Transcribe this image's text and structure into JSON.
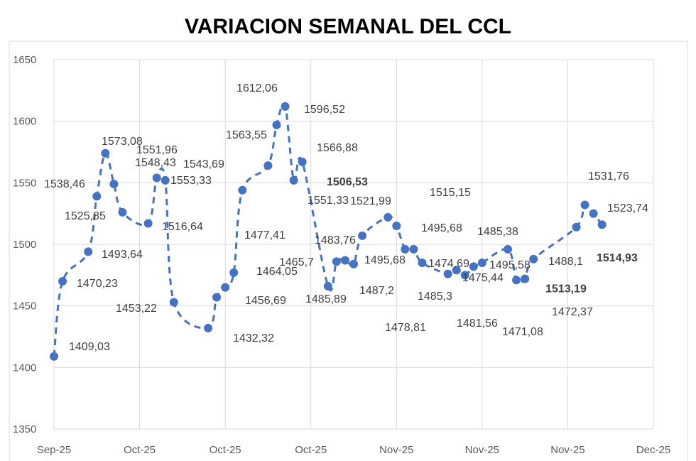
{
  "chart_data": {
    "type": "line",
    "title": "VARIACION SEMANAL DEL CCL",
    "xlabel": "",
    "ylabel": "",
    "ylim": [
      1350,
      1650
    ],
    "yticks": [
      "1350",
      "1400",
      "1450",
      "1500",
      "1550",
      "1600",
      "1650"
    ],
    "xticks": [
      "Sep-25",
      "Oct-25",
      "Oct-25",
      "Oct-25",
      "Nov-25",
      "Nov-25",
      "Nov-25",
      "Dec-25"
    ],
    "xtick_dates": [
      "2025-09-26",
      "2025-10-06",
      "2025-10-16",
      "2025-10-26",
      "2025-11-05",
      "2025-11-15",
      "2025-11-25",
      "2025-12-05"
    ],
    "grid": true,
    "legend": "none",
    "line_style": "dashed",
    "color": "#4472C4",
    "points": [
      {
        "x": "2025-09-26",
        "y": 1409
      },
      {
        "x": "2025-09-27",
        "y": 1470
      },
      {
        "x": "2025-09-30",
        "y": 1494
      },
      {
        "x": "2025-10-01",
        "y": 1539
      },
      {
        "x": "2025-10-02",
        "y": 1574
      },
      {
        "x": "2025-10-03",
        "y": 1549
      },
      {
        "x": "2025-10-04",
        "y": 1526
      },
      {
        "x": "2025-10-07",
        "y": 1517
      },
      {
        "x": "2025-10-08",
        "y": 1554
      },
      {
        "x": "2025-10-09",
        "y": 1552
      },
      {
        "x": "2025-10-10",
        "y": 1453
      },
      {
        "x": "2025-10-14",
        "y": 1432
      },
      {
        "x": "2025-10-15",
        "y": 1457
      },
      {
        "x": "2025-10-16",
        "y": 1465
      },
      {
        "x": "2025-10-17",
        "y": 1477
      },
      {
        "x": "2025-10-18",
        "y": 1544
      },
      {
        "x": "2025-10-21",
        "y": 1564
      },
      {
        "x": "2025-10-22",
        "y": 1597
      },
      {
        "x": "2025-10-23",
        "y": 1612
      },
      {
        "x": "2025-10-24",
        "y": 1552
      },
      {
        "x": "2025-10-25",
        "y": 1567
      },
      {
        "x": "2025-10-28",
        "y": 1466
      },
      {
        "x": "2025-10-29",
        "y": 1486
      },
      {
        "x": "2025-10-30",
        "y": 1487
      },
      {
        "x": "2025-10-31",
        "y": 1484
      },
      {
        "x": "2025-11-01",
        "y": 1507
      },
      {
        "x": "2025-11-04",
        "y": 1522
      },
      {
        "x": "2025-11-05",
        "y": 1515
      },
      {
        "x": "2025-11-06",
        "y": 1496
      },
      {
        "x": "2025-11-07",
        "y": 1496
      },
      {
        "x": "2025-11-08",
        "y": 1485
      },
      {
        "x": "2025-11-11",
        "y": 1476
      },
      {
        "x": "2025-11-12",
        "y": 1479
      },
      {
        "x": "2025-11-13",
        "y": 1475
      },
      {
        "x": "2025-11-14",
        "y": 1482
      },
      {
        "x": "2025-11-15",
        "y": 1485
      },
      {
        "x": "2025-11-18",
        "y": 1496
      },
      {
        "x": "2025-11-19",
        "y": 1471
      },
      {
        "x": "2025-11-20",
        "y": 1472
      },
      {
        "x": "2025-11-21",
        "y": 1488
      },
      {
        "x": "2025-11-26",
        "y": 1514
      },
      {
        "x": "2025-11-27",
        "y": 1532
      },
      {
        "x": "2025-11-28",
        "y": 1525
      },
      {
        "x": "2025-11-29",
        "y": 1516
      }
    ],
    "data_labels": [
      "1409,03",
      "1470,23",
      "1493,64",
      "1538,46",
      "1525,85",
      "1573,08",
      "1551,96",
      "1548,43",
      "1543,69",
      "1553,33",
      "1516,64",
      "1453,22",
      "1432,32",
      "1477,41",
      "1464,05",
      "1456,69",
      "1563,55",
      "1612,06",
      "1596,52",
      "1566,88",
      "1551,33",
      "1506,53",
      "1521,99",
      "1483,76",
      "1465,7",
      "1485,89",
      "1487,2",
      "1515,15",
      "1495,68",
      "1495,68",
      "1485,3",
      "1474,69",
      "1478,81",
      "1481,56",
      "1475,44",
      "1485,38",
      "1495,58",
      "1471,08",
      "1472,37",
      "1488,1",
      "1513,19",
      "1514,93",
      "1531,76",
      "1523,74"
    ]
  }
}
